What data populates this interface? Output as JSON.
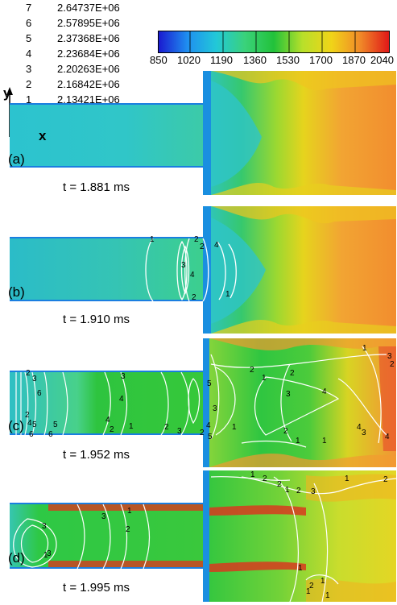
{
  "contour_legend": [
    {
      "level": "7",
      "value": "2.64737E+06"
    },
    {
      "level": "6",
      "value": "2.57895E+06"
    },
    {
      "level": "5",
      "value": "2.37368E+06"
    },
    {
      "level": "4",
      "value": "2.23684E+06"
    },
    {
      "level": "3",
      "value": "2.20263E+06"
    },
    {
      "level": "2",
      "value": "2.16842E+06"
    },
    {
      "level": "1",
      "value": "2.13421E+06"
    }
  ],
  "colorbar": {
    "ticks": [
      "850",
      "1020",
      "1190",
      "1360",
      "1530",
      "1700",
      "1870",
      "2040"
    ],
    "colors": [
      "#1a1ad0",
      "#1f8ff0",
      "#22c8d8",
      "#3ad27a",
      "#22c23a",
      "#b8e02a",
      "#f0d418",
      "#f08a28",
      "#e01818"
    ]
  },
  "axes": {
    "y": "y",
    "x": "x"
  },
  "panels": [
    {
      "id": "(a)",
      "time": "t = 1.881 ms"
    },
    {
      "id": "(b)",
      "time": "t = 1.910 ms"
    },
    {
      "id": "(c)",
      "time": "t = 1.952 ms"
    },
    {
      "id": "(d)",
      "time": "t = 1.995 ms"
    }
  ]
}
